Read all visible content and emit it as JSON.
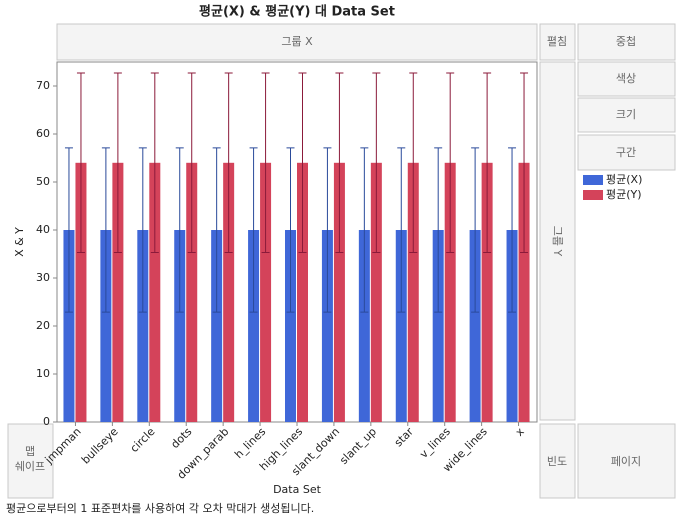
{
  "chart_data": {
    "type": "bar",
    "title": "평균(X) & 평균(Y) 대 Data Set",
    "x_label": "Data Set",
    "y_label": "X & Y",
    "categories": [
      "jmpman",
      "bullseye",
      "circle",
      "dots",
      "down_parab",
      "h_lines",
      "high_lines",
      "slant_down",
      "slant_up",
      "star",
      "v_lines",
      "wide_lines",
      "x"
    ],
    "series": [
      {
        "name": "평균(X)",
        "color": "#3f67d8",
        "error_color": "#2a4a9a",
        "values": [
          40,
          40,
          40,
          40,
          40,
          40,
          40,
          40,
          40,
          40,
          40,
          40,
          40
        ],
        "errors": [
          17.1,
          17.1,
          17.1,
          17.1,
          17.1,
          17.1,
          17.1,
          17.1,
          17.1,
          17.1,
          17.1,
          17.1,
          17.1
        ]
      },
      {
        "name": "평균(Y)",
        "color": "#d4435a",
        "error_color": "#8b1a3a",
        "values": [
          54,
          54,
          54,
          54,
          54,
          54,
          54,
          54,
          54,
          54,
          54,
          54,
          54
        ],
        "errors": [
          18.7,
          18.7,
          18.7,
          18.7,
          18.7,
          18.7,
          18.7,
          18.7,
          18.7,
          18.7,
          18.7,
          18.7,
          18.7
        ]
      }
    ],
    "ylim": [
      0,
      75
    ],
    "yticks": [
      0,
      10,
      20,
      30,
      40,
      50,
      60,
      70
    ],
    "grid": false
  },
  "ui": {
    "group_x": "그룹 X",
    "wrap": "펼침",
    "overlay": "중첩",
    "color": "색상",
    "size": "크기",
    "interval": "구간",
    "group_y": "그룹 Y",
    "map_shape": [
      "맵",
      "쉐이프"
    ],
    "frequency": "빈도",
    "page": "페이지",
    "footer": "평균으로부터의 1 표준편차를 사용하여 각 오차 막대가 생성됩니다."
  }
}
